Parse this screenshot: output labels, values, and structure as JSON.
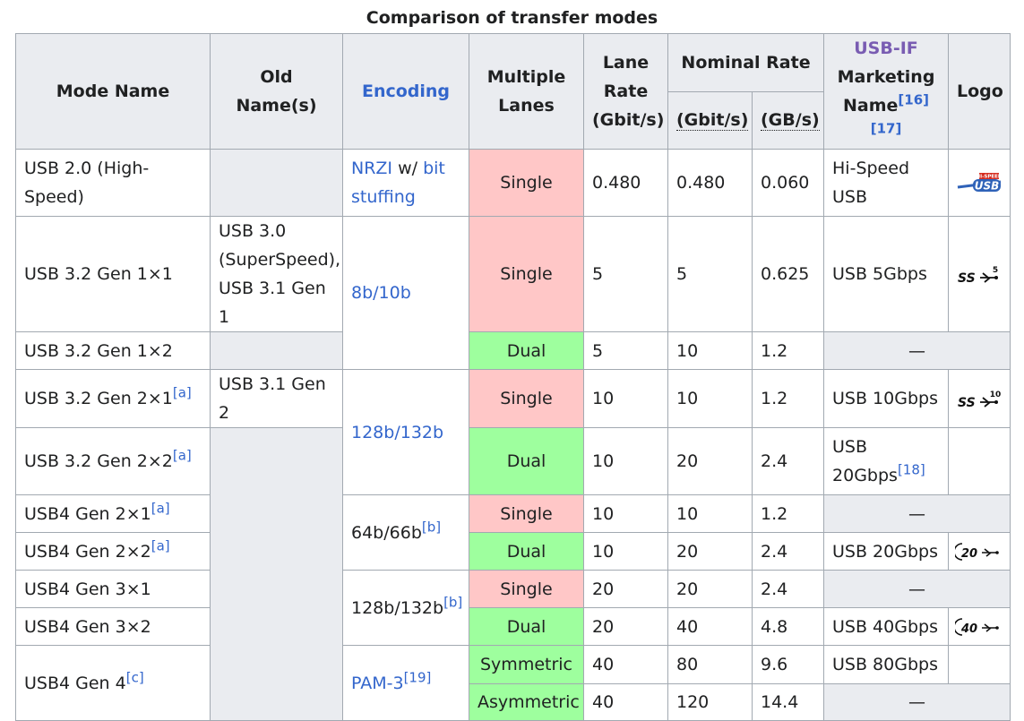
{
  "caption": "Comparison of transfer modes",
  "headers": {
    "mode_name": "Mode Name",
    "old_names": "Old Name(s)",
    "encoding": "Encoding",
    "multiple_lanes": "Multiple Lanes",
    "lane_rate": "Lane Rate (Gbit/s)",
    "nominal_rate": "Nominal Rate",
    "gbits": "(Gbit/s)",
    "gbs": "(GB/s)",
    "usbif": "USB-IF",
    "marketing": "Marketing",
    "name": "Name",
    "name_refs": "[16][17]",
    "logo": "Logo"
  },
  "rows": [
    {
      "mode": "USB 2.0 (High-Speed)",
      "mode_ref": "",
      "lanes": "Single",
      "lane_rate": "0.480",
      "gbits": "0.480",
      "gbs": "0.060",
      "marketing": "Hi-Speed USB",
      "marketing_ref": "",
      "logo": "hi-speed-usb-logo"
    },
    {
      "mode": "USB 3.2 Gen 1×1",
      "mode_ref": "",
      "lanes": "Single",
      "lane_rate": "5",
      "gbits": "5",
      "gbs": "0.625",
      "marketing": "USB 5Gbps",
      "marketing_ref": "",
      "logo": "superspeed-5-logo"
    },
    {
      "mode": "USB 3.2 Gen 1×2",
      "mode_ref": "",
      "lanes": "Dual",
      "lane_rate": "5",
      "gbits": "10",
      "gbs": "1.2",
      "marketing": "—",
      "marketing_ref": "",
      "logo": ""
    },
    {
      "mode": "USB 3.2 Gen 2×1",
      "mode_ref": "[a]",
      "lanes": "Single",
      "lane_rate": "10",
      "gbits": "10",
      "gbs": "1.2",
      "marketing": "USB 10Gbps",
      "marketing_ref": "",
      "logo": "superspeed-10-logo"
    },
    {
      "mode": "USB 3.2 Gen 2×2",
      "mode_ref": "[a]",
      "lanes": "Dual",
      "lane_rate": "10",
      "gbits": "20",
      "gbs": "2.4",
      "marketing": "USB 20Gbps",
      "marketing_ref": "[18]",
      "logo": ""
    },
    {
      "mode": "USB4 Gen 2×1",
      "mode_ref": "[a]",
      "lanes": "Single",
      "lane_rate": "10",
      "gbits": "10",
      "gbs": "1.2",
      "marketing": "—",
      "marketing_ref": "",
      "logo": ""
    },
    {
      "mode": "USB4 Gen 2×2",
      "mode_ref": "[a]",
      "lanes": "Dual",
      "lane_rate": "10",
      "gbits": "20",
      "gbs": "2.4",
      "marketing": "USB 20Gbps",
      "marketing_ref": "",
      "logo": "usb4-20-logo"
    },
    {
      "mode": "USB4 Gen 3×1",
      "mode_ref": "",
      "lanes": "Single",
      "lane_rate": "20",
      "gbits": "20",
      "gbs": "2.4",
      "marketing": "—",
      "marketing_ref": "",
      "logo": ""
    },
    {
      "mode": "USB4 Gen 3×2",
      "mode_ref": "",
      "lanes": "Dual",
      "lane_rate": "20",
      "gbits": "40",
      "gbs": "4.8",
      "marketing": "USB 40Gbps",
      "marketing_ref": "",
      "logo": "usb4-40-logo"
    },
    {
      "mode": "USB4 Gen 4",
      "mode_ref": "[c]",
      "lanes": "Symmetric",
      "lane_rate": "40",
      "gbits": "80",
      "gbs": "9.6",
      "marketing": "USB 80Gbps",
      "marketing_ref": "",
      "logo": ""
    },
    {
      "mode": "",
      "mode_ref": "",
      "lanes": "Asymmetric",
      "lane_rate": "40",
      "gbits": "120",
      "gbs": "14.4",
      "marketing": "—",
      "marketing_ref": "",
      "logo": ""
    }
  ],
  "old_names": {
    "usb30": "USB 3.0 (SuperSpeed), USB 3.1 Gen 1",
    "usb31g2": "USB 3.1 Gen 2"
  },
  "encodings": {
    "nrzi_a": "NRZI",
    "nrzi_b": " w/ ",
    "nrzi_c": "bit stuffing",
    "e8b10b": "8b/10b",
    "e128_132": "128b/132b",
    "e64_66": "64b/66b",
    "e64_66_ref": "[b]",
    "e128_132b": "128b/132b",
    "e128_132b_ref": "[b]",
    "pam3": "PAM-3",
    "pam3_ref": "[19]"
  },
  "logo_text": {
    "hi_speed_badge": "HI-SPEED",
    "hi_speed_usb": "USB",
    "ss5_num": "5",
    "ss10_num": "10",
    "usb4_20_num": "20",
    "usb4_40_num": "40",
    "ss": "SS"
  },
  "colors": {
    "header_bg": "#eaecf0",
    "single_bg": "#ffc7c7",
    "dual_bg": "#9eff9e",
    "link": "#3366cc",
    "visited_link": "#795cb2",
    "border": "#a2a9b1"
  }
}
